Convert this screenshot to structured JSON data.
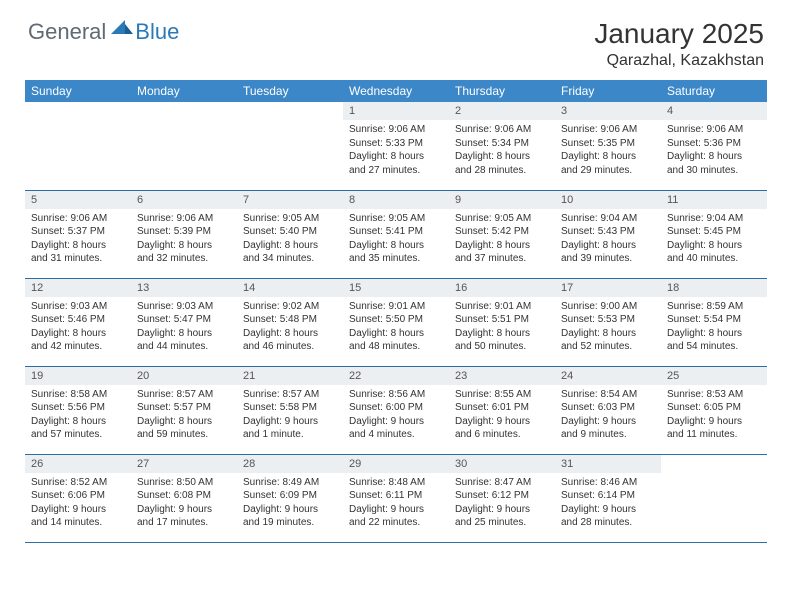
{
  "logo": {
    "part1": "General",
    "part2": "Blue"
  },
  "title": "January 2025",
  "location": "Qarazhal, Kazakhstan",
  "colors": {
    "header_bg": "#3b87c8",
    "daynum_bg": "#eceff1",
    "row_border": "#2a6fa8",
    "logo_gray": "#5f6a72",
    "logo_blue": "#2a7ab8"
  },
  "weekdays": [
    "Sunday",
    "Monday",
    "Tuesday",
    "Wednesday",
    "Thursday",
    "Friday",
    "Saturday"
  ],
  "weeks": [
    [
      null,
      null,
      null,
      {
        "n": "1",
        "sr": "9:06 AM",
        "ss": "5:33 PM",
        "dl": "8 hours and 27 minutes."
      },
      {
        "n": "2",
        "sr": "9:06 AM",
        "ss": "5:34 PM",
        "dl": "8 hours and 28 minutes."
      },
      {
        "n": "3",
        "sr": "9:06 AM",
        "ss": "5:35 PM",
        "dl": "8 hours and 29 minutes."
      },
      {
        "n": "4",
        "sr": "9:06 AM",
        "ss": "5:36 PM",
        "dl": "8 hours and 30 minutes."
      }
    ],
    [
      {
        "n": "5",
        "sr": "9:06 AM",
        "ss": "5:37 PM",
        "dl": "8 hours and 31 minutes."
      },
      {
        "n": "6",
        "sr": "9:06 AM",
        "ss": "5:39 PM",
        "dl": "8 hours and 32 minutes."
      },
      {
        "n": "7",
        "sr": "9:05 AM",
        "ss": "5:40 PM",
        "dl": "8 hours and 34 minutes."
      },
      {
        "n": "8",
        "sr": "9:05 AM",
        "ss": "5:41 PM",
        "dl": "8 hours and 35 minutes."
      },
      {
        "n": "9",
        "sr": "9:05 AM",
        "ss": "5:42 PM",
        "dl": "8 hours and 37 minutes."
      },
      {
        "n": "10",
        "sr": "9:04 AM",
        "ss": "5:43 PM",
        "dl": "8 hours and 39 minutes."
      },
      {
        "n": "11",
        "sr": "9:04 AM",
        "ss": "5:45 PM",
        "dl": "8 hours and 40 minutes."
      }
    ],
    [
      {
        "n": "12",
        "sr": "9:03 AM",
        "ss": "5:46 PM",
        "dl": "8 hours and 42 minutes."
      },
      {
        "n": "13",
        "sr": "9:03 AM",
        "ss": "5:47 PM",
        "dl": "8 hours and 44 minutes."
      },
      {
        "n": "14",
        "sr": "9:02 AM",
        "ss": "5:48 PM",
        "dl": "8 hours and 46 minutes."
      },
      {
        "n": "15",
        "sr": "9:01 AM",
        "ss": "5:50 PM",
        "dl": "8 hours and 48 minutes."
      },
      {
        "n": "16",
        "sr": "9:01 AM",
        "ss": "5:51 PM",
        "dl": "8 hours and 50 minutes."
      },
      {
        "n": "17",
        "sr": "9:00 AM",
        "ss": "5:53 PM",
        "dl": "8 hours and 52 minutes."
      },
      {
        "n": "18",
        "sr": "8:59 AM",
        "ss": "5:54 PM",
        "dl": "8 hours and 54 minutes."
      }
    ],
    [
      {
        "n": "19",
        "sr": "8:58 AM",
        "ss": "5:56 PM",
        "dl": "8 hours and 57 minutes."
      },
      {
        "n": "20",
        "sr": "8:57 AM",
        "ss": "5:57 PM",
        "dl": "8 hours and 59 minutes."
      },
      {
        "n": "21",
        "sr": "8:57 AM",
        "ss": "5:58 PM",
        "dl": "9 hours and 1 minute."
      },
      {
        "n": "22",
        "sr": "8:56 AM",
        "ss": "6:00 PM",
        "dl": "9 hours and 4 minutes."
      },
      {
        "n": "23",
        "sr": "8:55 AM",
        "ss": "6:01 PM",
        "dl": "9 hours and 6 minutes."
      },
      {
        "n": "24",
        "sr": "8:54 AM",
        "ss": "6:03 PM",
        "dl": "9 hours and 9 minutes."
      },
      {
        "n": "25",
        "sr": "8:53 AM",
        "ss": "6:05 PM",
        "dl": "9 hours and 11 minutes."
      }
    ],
    [
      {
        "n": "26",
        "sr": "8:52 AM",
        "ss": "6:06 PM",
        "dl": "9 hours and 14 minutes."
      },
      {
        "n": "27",
        "sr": "8:50 AM",
        "ss": "6:08 PM",
        "dl": "9 hours and 17 minutes."
      },
      {
        "n": "28",
        "sr": "8:49 AM",
        "ss": "6:09 PM",
        "dl": "9 hours and 19 minutes."
      },
      {
        "n": "29",
        "sr": "8:48 AM",
        "ss": "6:11 PM",
        "dl": "9 hours and 22 minutes."
      },
      {
        "n": "30",
        "sr": "8:47 AM",
        "ss": "6:12 PM",
        "dl": "9 hours and 25 minutes."
      },
      {
        "n": "31",
        "sr": "8:46 AM",
        "ss": "6:14 PM",
        "dl": "9 hours and 28 minutes."
      },
      null
    ]
  ]
}
